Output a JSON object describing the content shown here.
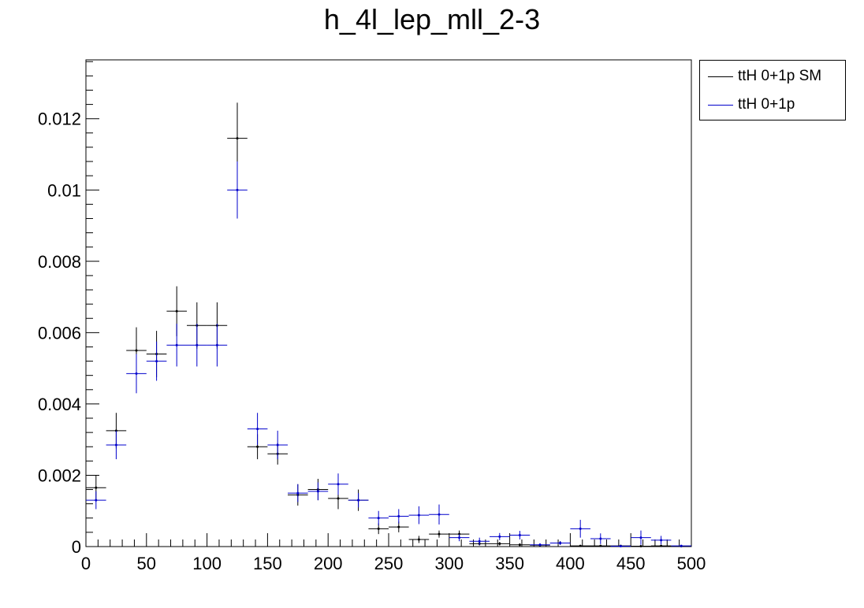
{
  "chart_data": {
    "type": "scatter",
    "title": "h_4l_lep_mll_2-3",
    "xlabel": "",
    "ylabel": "",
    "xlim": [
      0,
      500
    ],
    "ylim": [
      0,
      0.01365
    ],
    "bin_width": 16.667,
    "x_ticks": [
      "0",
      "50",
      "100",
      "150",
      "200",
      "250",
      "300",
      "350",
      "400",
      "450",
      "500"
    ],
    "y_ticks": [
      "0",
      "0.002",
      "0.004",
      "0.006",
      "0.008",
      "0.01",
      "0.012"
    ],
    "legend_position": "top-right, outside plot",
    "series": [
      {
        "name": "ttH 0+1p SM",
        "color": "#000000",
        "bin_centers": [
          8.33,
          25,
          41.67,
          58.33,
          75,
          91.67,
          108.33,
          125,
          141.67,
          158.33,
          175,
          191.67,
          208.33,
          225,
          241.67,
          258.33,
          275,
          291.67,
          308.33,
          325,
          341.67,
          358.33,
          375,
          391.67,
          408.33,
          425,
          441.67,
          458.33,
          475,
          491.67
        ],
        "values": [
          0.00165,
          0.00325,
          0.0055,
          0.0054,
          0.0066,
          0.0062,
          0.0062,
          0.01145,
          0.0028,
          0.0026,
          0.00145,
          0.0016,
          0.00135,
          0.0013,
          0.0005,
          0.00055,
          0.0002,
          0.00035,
          0.00035,
          8e-05,
          8e-05,
          5e-05,
          4e-05,
          0.0001,
          2e-05,
          2e-05,
          2e-05,
          1e-05,
          2e-05,
          1e-05
        ],
        "errors": [
          0.00035,
          0.0005,
          0.00065,
          0.00065,
          0.0007,
          0.00065,
          0.00065,
          0.001,
          0.00035,
          0.0003,
          0.0003,
          0.0003,
          0.0003,
          0.0003,
          0.00015,
          0.00015,
          0.0001,
          0.0001,
          0.0001,
          5e-05,
          5e-05,
          4e-05,
          3e-05,
          5e-05,
          2e-05,
          2e-05,
          2e-05,
          1e-05,
          2e-05,
          1e-05
        ]
      },
      {
        "name": "ttH 0+1p",
        "color": "#0000cc",
        "bin_centers": [
          8.33,
          25,
          41.67,
          58.33,
          75,
          91.67,
          108.33,
          125,
          141.67,
          158.33,
          175,
          191.67,
          208.33,
          225,
          241.67,
          258.33,
          275,
          291.67,
          308.33,
          325,
          341.67,
          358.33,
          375,
          391.67,
          408.33,
          425,
          441.67,
          458.33,
          475,
          491.67
        ],
        "values": [
          0.0013,
          0.00285,
          0.00485,
          0.0052,
          0.00565,
          0.00565,
          0.00565,
          0.01,
          0.0033,
          0.00285,
          0.0015,
          0.00155,
          0.00175,
          0.0013,
          0.0008,
          0.00085,
          0.00088,
          0.0009,
          0.00025,
          0.00015,
          0.00028,
          0.00032,
          5e-05,
          0.0001,
          0.0005,
          0.00022,
          1e-05,
          0.00025,
          0.00018,
          2e-05
        ],
        "errors": [
          0.00025,
          0.0004,
          0.00055,
          0.00055,
          0.0006,
          0.0006,
          0.0006,
          0.0008,
          0.00045,
          0.0004,
          0.00025,
          0.00025,
          0.0003,
          0.0002,
          0.0002,
          0.0002,
          0.00025,
          0.00028,
          0.0001,
          0.0001,
          0.0001,
          0.00012,
          4e-05,
          5e-05,
          0.00025,
          0.00015,
          1e-05,
          0.0002,
          0.00012,
          2e-05
        ]
      }
    ]
  }
}
